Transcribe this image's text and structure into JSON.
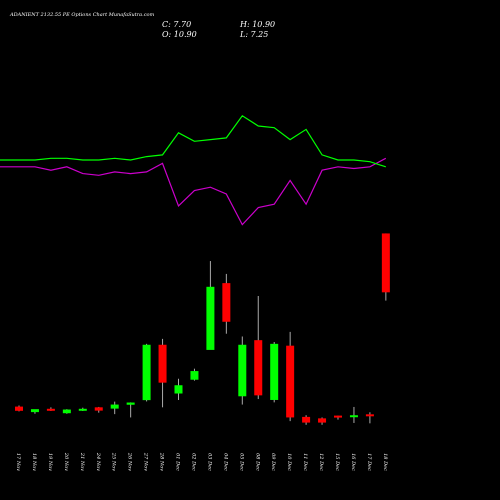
{
  "header": {
    "title": "ADANIENT 2132.55 PE Options  Chart MunafaSutra.com",
    "close_label": "C: 7.70",
    "open_label": "O: 10.90",
    "high_label": "H: 10.90",
    "low_label": "L: 7.25"
  },
  "colors": {
    "background": "#000000",
    "up": "#00ff00",
    "down": "#ff0000",
    "wick": "#aaaaaa",
    "line_green": "#00ff00",
    "line_magenta": "#cc00cc",
    "text": "#ffffff"
  },
  "chart_data": {
    "type": "candlestick",
    "categories": [
      "17 Nov",
      "18 Nov",
      "19 Nov",
      "20 Nov",
      "21 Nov",
      "24 Nov",
      "25 Nov",
      "26 Nov",
      "27 Nov",
      "28 Nov",
      "01 Dec",
      "02 Dec",
      "03 Dec",
      "04 Dec",
      "05 Dec",
      "08 Dec",
      "09 Dec",
      "10 Dec",
      "11 Dec",
      "12 Dec",
      "15 Dec",
      "16 Dec",
      "17 Dec",
      "18 Dec"
    ],
    "ohlc": [
      {
        "o": 1.49,
        "h": 1.55,
        "l": 1.23,
        "c": 1.26
      },
      {
        "o": 1.19,
        "h": 1.3,
        "l": 1.1,
        "c": 1.35
      },
      {
        "o": 1.37,
        "h": 1.45,
        "l": 1.25,
        "c": 1.33
      },
      {
        "o": 1.13,
        "h": 1.35,
        "l": 1.1,
        "c": 1.33
      },
      {
        "o": 1.27,
        "h": 1.43,
        "l": 1.25,
        "c": 1.37
      },
      {
        "o": 1.45,
        "h": 1.47,
        "l": 1.16,
        "c": 1.27
      },
      {
        "o": 1.38,
        "h": 1.76,
        "l": 1.08,
        "c": 1.6
      },
      {
        "o": 1.59,
        "h": 1.72,
        "l": 0.9,
        "c": 1.71
      },
      {
        "o": 1.84,
        "h": 4.9,
        "l": 1.77,
        "c": 4.85
      },
      {
        "o": 4.85,
        "h": 5.17,
        "l": 1.45,
        "c": 2.79
      },
      {
        "o": 2.2,
        "h": 3.0,
        "l": 1.85,
        "c": 2.65
      },
      {
        "o": 2.95,
        "h": 3.55,
        "l": 2.9,
        "c": 3.42
      },
      {
        "o": 4.57,
        "h": 9.4,
        "l": 4.6,
        "c": 8.0
      },
      {
        "o": 8.2,
        "h": 8.7,
        "l": 5.45,
        "c": 6.1
      },
      {
        "o": 2.05,
        "h": 5.3,
        "l": 1.6,
        "c": 4.85
      },
      {
        "o": 5.1,
        "h": 7.5,
        "l": 1.9,
        "c": 2.1
      },
      {
        "o": 1.85,
        "h": 5.0,
        "l": 1.72,
        "c": 4.9
      },
      {
        "o": 4.8,
        "h": 5.55,
        "l": 0.7,
        "c": 0.9
      },
      {
        "o": 0.93,
        "h": 1.02,
        "l": 0.5,
        "c": 0.62
      },
      {
        "o": 0.85,
        "h": 0.9,
        "l": 0.5,
        "c": 0.62
      },
      {
        "o": 1.0,
        "h": 1.0,
        "l": 0.78,
        "c": 0.96
      },
      {
        "o": 0.96,
        "h": 1.47,
        "l": 0.6,
        "c": 1.02
      },
      {
        "o": 1.07,
        "h": 1.18,
        "l": 0.58,
        "c": 1.0
      },
      {
        "o": 10.9,
        "h": 10.9,
        "l": 7.25,
        "c": 7.7
      }
    ],
    "series": [
      {
        "values": [
          4.6,
          4.6,
          4.4,
          4.6,
          4.2,
          4.1,
          4.3,
          4.2,
          4.3,
          4.8,
          2.3,
          3.2,
          3.4,
          3.0,
          1.2,
          2.2,
          2.4,
          3.8,
          2.4,
          4.4,
          4.6,
          4.5,
          4.6,
          5.1
        ]
      },
      {
        "values": [
          5.0,
          5.0,
          5.1,
          5.1,
          5.0,
          5.0,
          5.1,
          5.0,
          5.2,
          5.3,
          6.6,
          6.1,
          6.2,
          6.3,
          7.6,
          7.0,
          6.9,
          6.2,
          6.8,
          5.3,
          5.0,
          5.0,
          4.9,
          4.6
        ]
      }
    ]
  }
}
